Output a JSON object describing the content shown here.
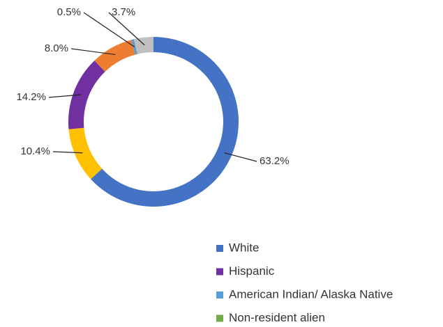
{
  "chart_data": {
    "type": "donut",
    "categories": [
      "White",
      null,
      "Hispanic",
      null,
      "American Indian/ Alaska Native",
      null
    ],
    "values": [
      63.2,
      10.4,
      14.2,
      8.0,
      0.5,
      3.7
    ],
    "value_labels": [
      "63.2%",
      "10.4%",
      "14.2%",
      "8.0%",
      "0.5%",
      "3.7%"
    ],
    "colors": [
      "#4472c4",
      "#ffc000",
      "#7030a0",
      "#ed7d31",
      "#5b9bd5",
      "#bfbfbf"
    ],
    "legend": [
      {
        "name": "White",
        "color": "#4472c4"
      },
      {
        "name": "Hispanic",
        "color": "#7030a0"
      },
      {
        "name": "American Indian/ Alaska Native",
        "color": "#5b9bd5"
      },
      {
        "name": "Non-resident alien",
        "color": "#70ad47"
      }
    ]
  }
}
